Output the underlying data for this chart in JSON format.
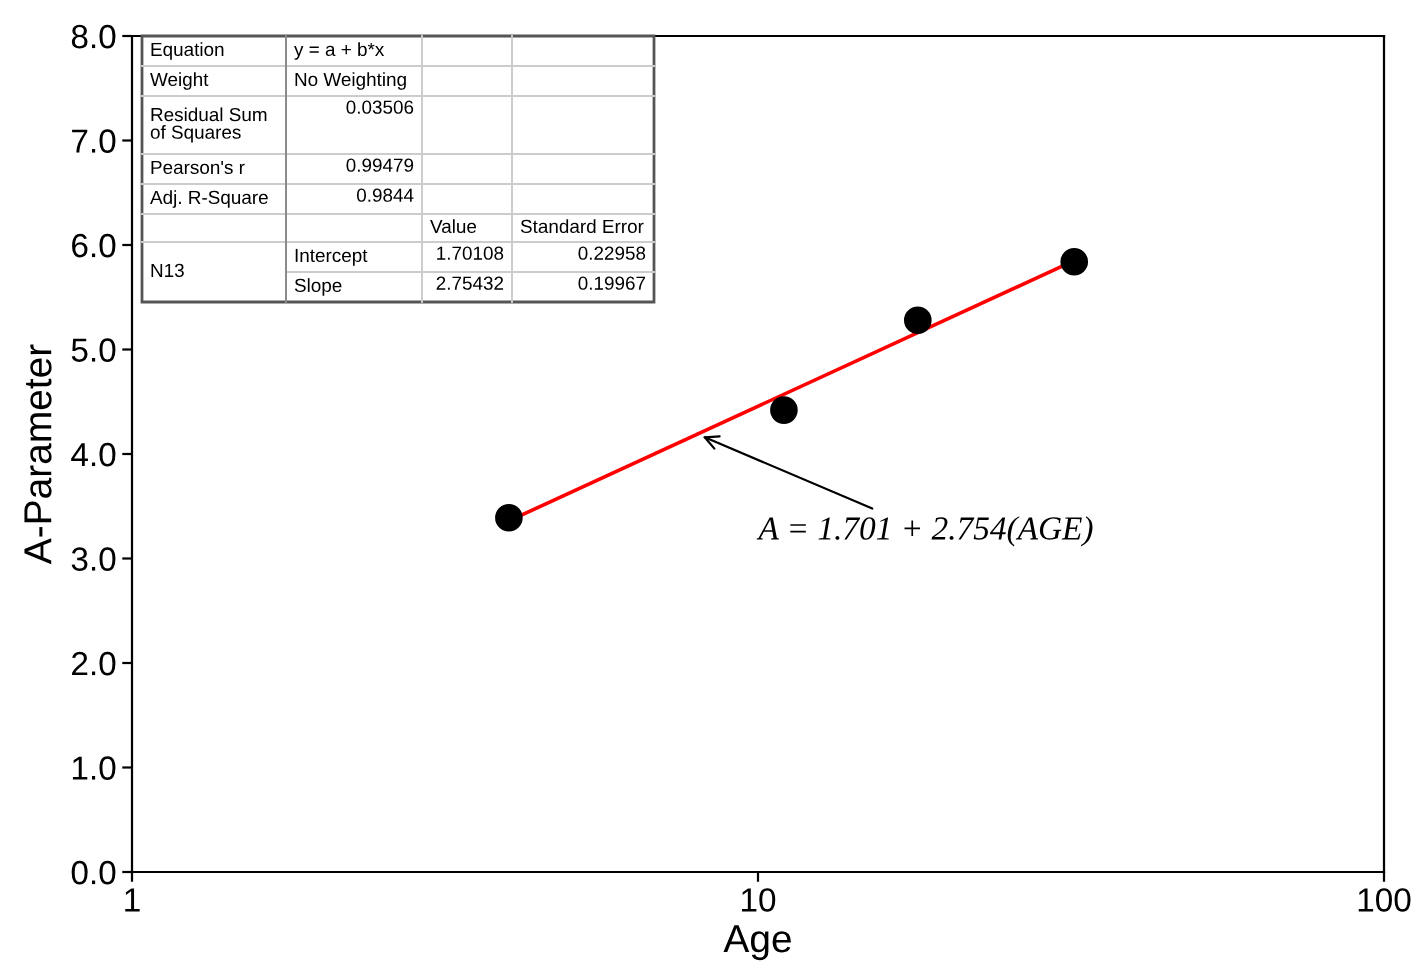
{
  "chart_data": {
    "type": "scatter",
    "xlabel": "Age",
    "ylabel": "A-Parameter",
    "log": "x",
    "grid": false,
    "legend": false,
    "xlim": [
      1,
      100
    ],
    "xticks": [
      1,
      10,
      100
    ],
    "ylim": [
      0,
      8
    ],
    "yticks": [
      {
        "value": 0,
        "label": "0.0"
      },
      {
        "value": 1,
        "label": "1.0"
      },
      {
        "value": 2,
        "label": "2.0"
      },
      {
        "value": 3,
        "label": "3.0"
      },
      {
        "value": 4,
        "label": "4.0"
      },
      {
        "value": 5,
        "label": "5.0"
      },
      {
        "value": 6,
        "label": "6.0"
      },
      {
        "value": 7,
        "label": "7.0"
      },
      {
        "value": 8,
        "label": "8.0"
      }
    ],
    "series": [
      {
        "type": "scatter",
        "color": "#000000",
        "marker": "circle",
        "x": [
          4,
          11,
          18,
          32
        ],
        "values": [
          3.39,
          4.42,
          5.28,
          5.84
        ]
      },
      {
        "type": "line",
        "color": "#ff0000",
        "marker": "none",
        "line_style": "solid",
        "x": [
          4,
          32
        ],
        "values": [
          3.36,
          5.85
        ]
      }
    ],
    "annotations": [
      "Equation",
      "y = a + b*x",
      "Weight",
      "No Weighting",
      "Residual Sum\nof Squares",
      "0.03506",
      "Pearson's r",
      "0.99479",
      "Adj. R-Square",
      "0.9844",
      "Value",
      "Standard Error",
      "N13",
      "Intercept",
      "1.70108",
      "0.22958",
      "Slope",
      "2.75432",
      "0.19967",
      {
        "text": "A = 1.701 + 2.754(AGE)",
        "x": 8,
        "y": 4.19
      }
    ]
  }
}
